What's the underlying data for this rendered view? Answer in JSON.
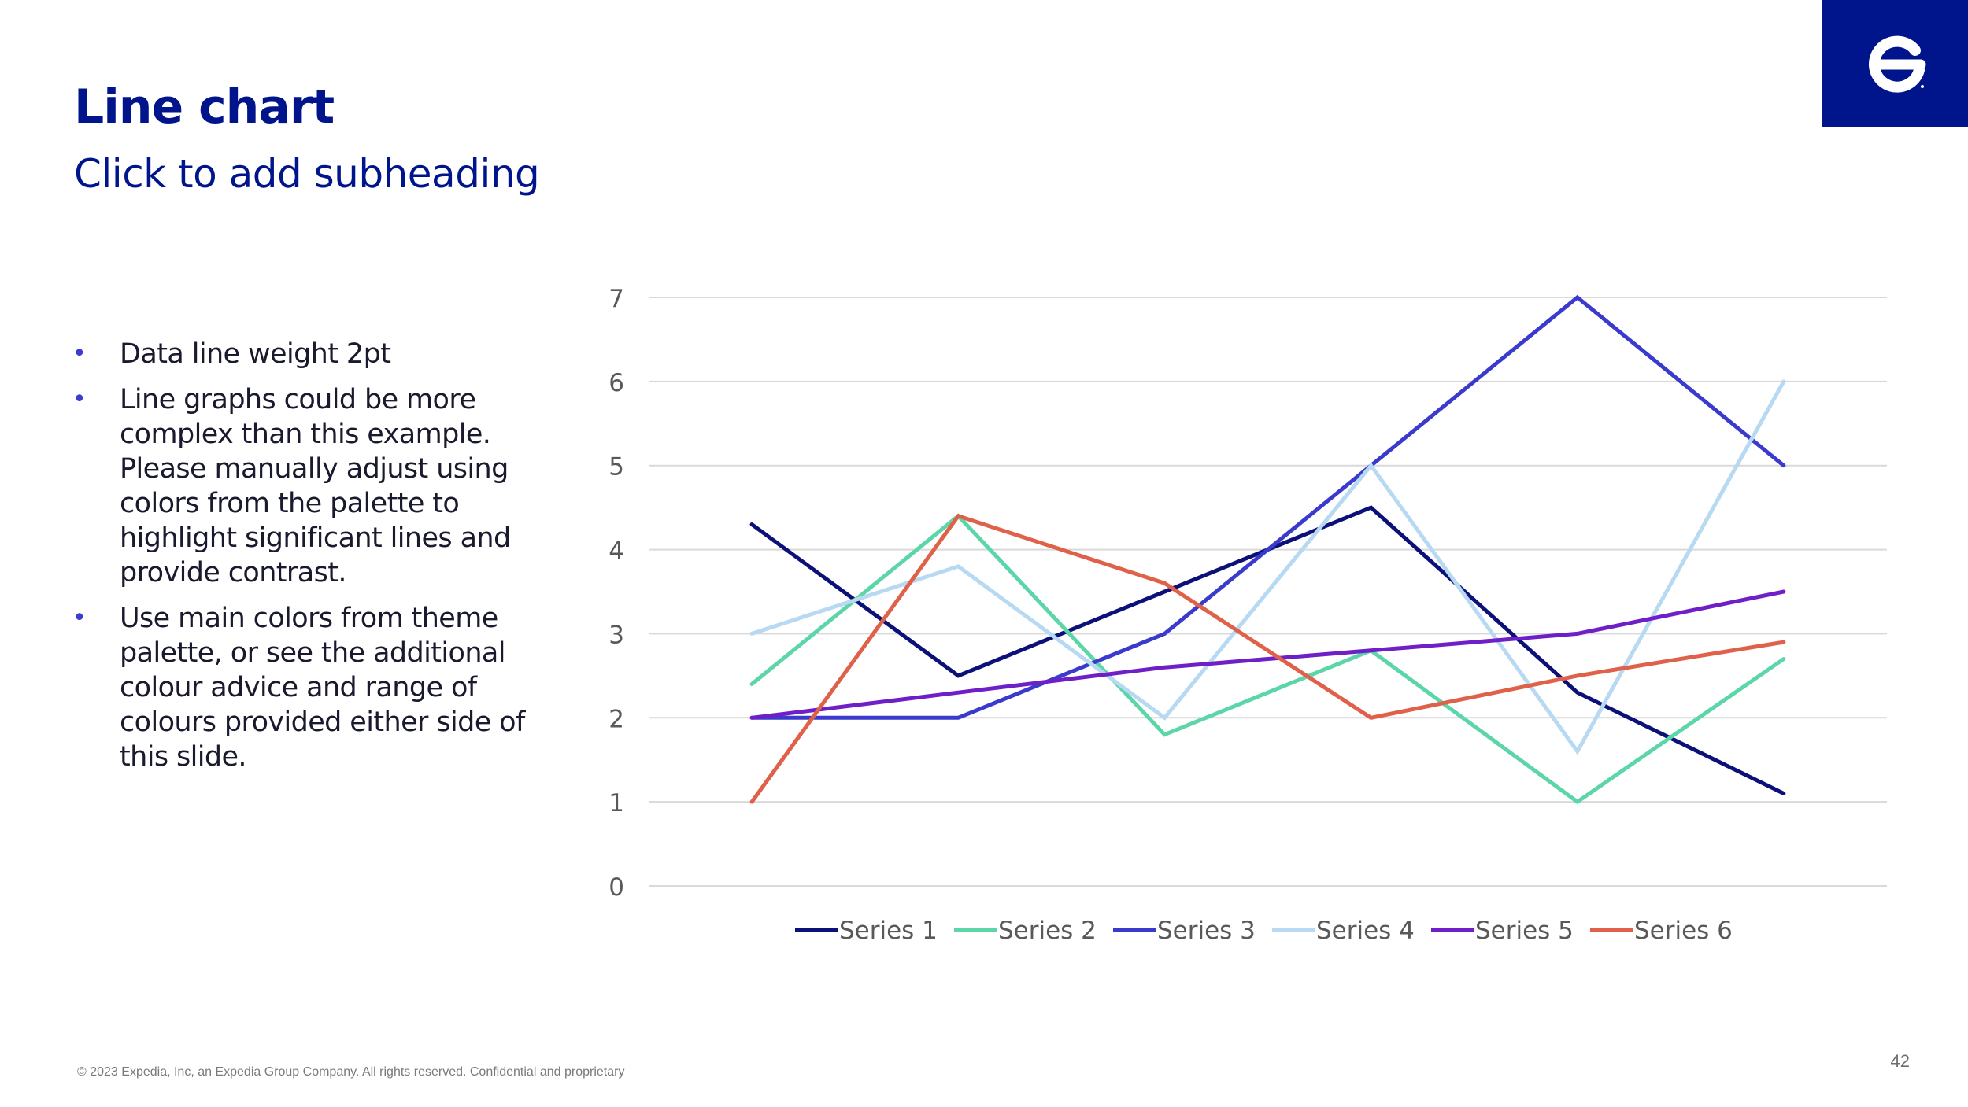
{
  "slide": {
    "title": "Line chart",
    "subtitle": "Click to add subheading",
    "bullets": [
      "Data line weight 2pt",
      "Line graphs could be more complex than this example. Please manually adjust using colors from the palette to highlight significant lines and provide contrast.",
      "Use main colors from theme palette, or see the additional colour advice and range of colours provided either side of this slide."
    ],
    "footer": "© 2023 Expedia, Inc, an Expedia Group Company. All rights reserved. Confidential and proprietary",
    "page_number": "42",
    "logo": {
      "icon": "expedia-e-logo-icon",
      "background": "#00148c"
    },
    "colors": {
      "brand": "#00148c",
      "bullet": "#3c3cd0",
      "gridline": "#d9d9d9",
      "axis_text": "#595959"
    }
  },
  "chart_data": {
    "type": "line",
    "categories": [
      "",
      "",
      "",
      "",
      "",
      ""
    ],
    "ylim": [
      0,
      7
    ],
    "yticks": [
      0,
      1,
      2,
      3,
      4,
      5,
      6,
      7
    ],
    "grid": true,
    "legend_position": "bottom",
    "series": [
      {
        "name": "Series 1",
        "color": "#0b1178",
        "values": [
          4.3,
          2.5,
          3.5,
          4.5,
          2.3,
          1.1
        ]
      },
      {
        "name": "Series 2",
        "color": "#5cd6a8",
        "values": [
          2.4,
          4.4,
          1.8,
          2.8,
          1.0,
          2.7
        ]
      },
      {
        "name": "Series 3",
        "color": "#3a3acd",
        "values": [
          2.0,
          2.0,
          3.0,
          5.0,
          7.0,
          5.0
        ]
      },
      {
        "name": "Series 4",
        "color": "#b7d9f2",
        "values": [
          3.0,
          3.8,
          2.0,
          5.0,
          1.6,
          6.0
        ]
      },
      {
        "name": "Series 5",
        "color": "#6f1fc8",
        "values": [
          2.0,
          2.3,
          2.6,
          2.8,
          3.0,
          3.5
        ]
      },
      {
        "name": "Series 6",
        "color": "#e0614a",
        "values": [
          1.0,
          4.4,
          3.6,
          2.0,
          2.5,
          2.9
        ]
      }
    ]
  }
}
